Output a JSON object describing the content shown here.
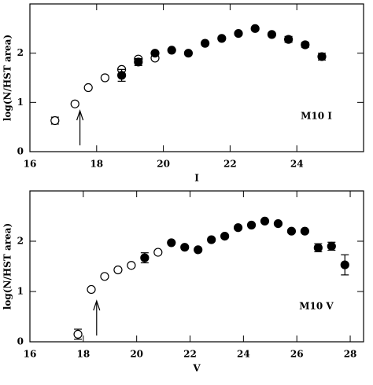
{
  "chart_data": [
    {
      "type": "scatter",
      "xlabel": "I",
      "ylabel": "log(N/HST area)",
      "annotation": "M10 I",
      "arrow_x": 17.5,
      "xlim": [
        16,
        26
      ],
      "ylim": [
        0,
        3
      ],
      "xticks": [
        16,
        18,
        20,
        22,
        24
      ],
      "yticks": [
        0,
        1,
        2
      ],
      "series": [
        {
          "marker": "open",
          "color": "#000000",
          "x": [
            16.75,
            17.35,
            17.75,
            18.25,
            18.75,
            19.25,
            19.75
          ],
          "values": [
            0.63,
            0.97,
            1.3,
            1.5,
            1.67,
            1.88,
            1.9
          ],
          "errors": [
            0.07,
            null,
            null,
            null,
            null,
            null,
            null
          ]
        },
        {
          "marker": "filled",
          "color": "#000000",
          "x": [
            18.75,
            19.25,
            19.75,
            20.25,
            20.75,
            21.25,
            21.75,
            22.25,
            22.75,
            23.25,
            23.75,
            24.25,
            24.75
          ],
          "values": [
            1.55,
            1.82,
            2.0,
            2.06,
            2.0,
            2.2,
            2.3,
            2.4,
            2.5,
            2.38,
            2.28,
            2.17,
            1.93
          ],
          "errors": [
            0.12,
            0.07,
            null,
            null,
            null,
            null,
            null,
            null,
            null,
            null,
            0.06,
            0.05,
            0.07
          ]
        }
      ]
    },
    {
      "type": "scatter",
      "xlabel": "V",
      "ylabel": "log(N/HST area)",
      "annotation": "M10 V",
      "arrow_x": 18.5,
      "xlim": [
        16,
        28.5
      ],
      "ylim": [
        0,
        3
      ],
      "xticks": [
        16,
        18,
        20,
        22,
        24,
        26,
        28
      ],
      "yticks": [
        0,
        1,
        2
      ],
      "series": [
        {
          "marker": "open",
          "color": "#000000",
          "x": [
            17.8,
            18.3,
            18.8,
            19.3,
            19.8,
            20.8
          ],
          "values": [
            0.15,
            1.04,
            1.3,
            1.43,
            1.52,
            1.78
          ],
          "errors": [
            0.1,
            null,
            null,
            null,
            null,
            null
          ]
        },
        {
          "marker": "filled",
          "color": "#000000",
          "x": [
            20.3,
            21.3,
            21.8,
            22.3,
            22.8,
            23.3,
            23.8,
            24.3,
            24.8,
            25.3,
            25.8,
            26.3,
            26.8,
            27.3,
            27.8
          ],
          "values": [
            1.67,
            1.97,
            1.88,
            1.83,
            2.03,
            2.1,
            2.27,
            2.32,
            2.4,
            2.35,
            2.2,
            2.2,
            1.87,
            1.9,
            1.53
          ],
          "errors": [
            0.1,
            null,
            null,
            null,
            null,
            null,
            null,
            null,
            null,
            null,
            null,
            null,
            0.08,
            0.08,
            0.2
          ]
        }
      ]
    }
  ]
}
